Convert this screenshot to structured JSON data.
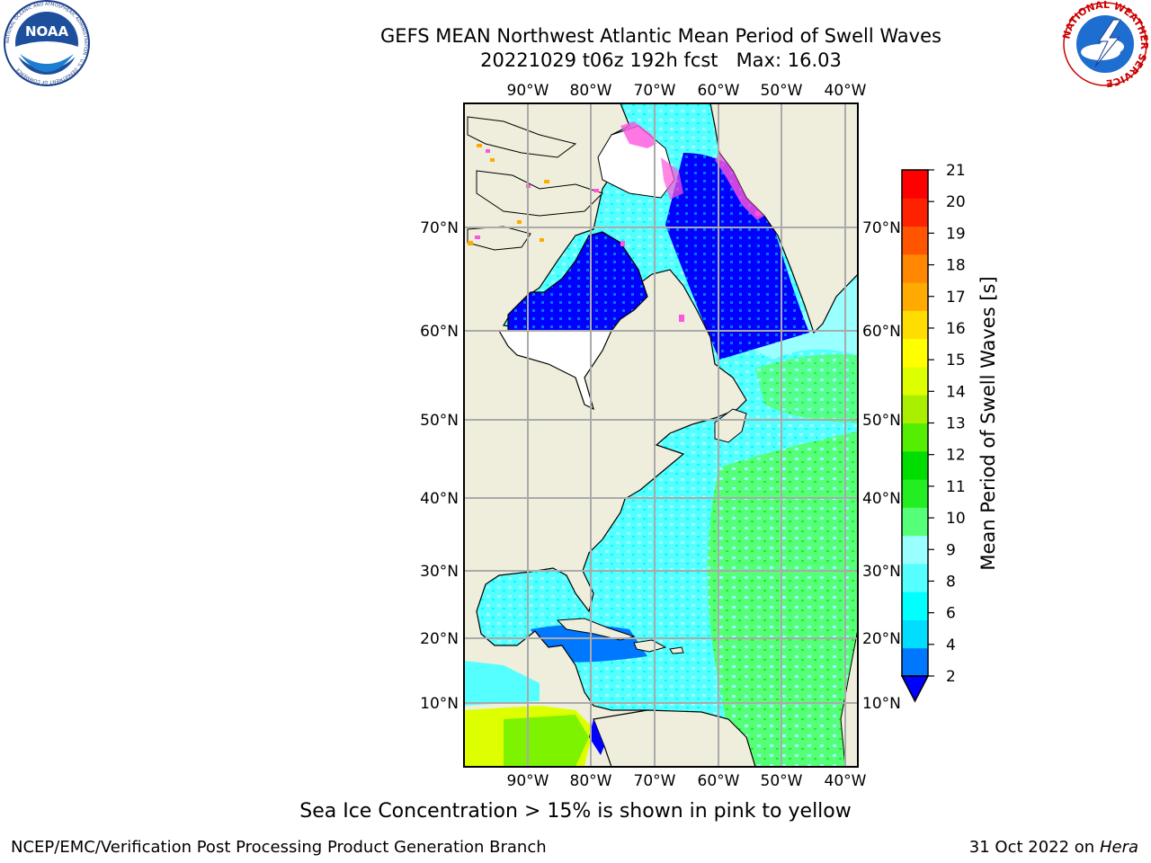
{
  "title": {
    "line1": "GEFS MEAN Northwest Atlantic Mean Period of Swell Waves",
    "line2": "20221029 t06z 192h fcst   Max: 16.03"
  },
  "logos": {
    "left": "NOAA",
    "left_ring": "NATIONAL OCEANIC AND ATMOSPHERIC ADMINISTRATION · U.S. DEPARTMENT OF COMMERCE",
    "right_ring": "NATIONAL WEATHER SERVICE"
  },
  "map": {
    "lon_labels": [
      "90°W",
      "80°W",
      "70°W",
      "60°W",
      "50°W",
      "40°W"
    ],
    "lat_labels": [
      "70°N",
      "60°N",
      "50°N",
      "40°N",
      "30°N",
      "20°N",
      "10°N"
    ],
    "colors": {
      "land": "#efeedc",
      "ocean_cyan": "#00ffff",
      "ocean_light": "#99ffff",
      "ocean_green": "#55ff77",
      "deep_blue": "#0000ff",
      "mid_blue": "#0077ff",
      "grid": "#aaaaaa"
    }
  },
  "colorbar": {
    "label": "Mean Period of Swell Waves [s]",
    "ticks": [
      "2",
      "4",
      "6",
      "8",
      "9",
      "10",
      "11",
      "12",
      "13",
      "14",
      "15",
      "16",
      "17",
      "18",
      "19",
      "20",
      "21"
    ],
    "colors": [
      "#0077ff",
      "#00ddff",
      "#00ffff",
      "#55ffff",
      "#99ffff",
      "#55ff77",
      "#22ee22",
      "#00dd00",
      "#55ee00",
      "#aaee00",
      "#ddff00",
      "#ffff00",
      "#ffdd00",
      "#ffaa00",
      "#ff8800",
      "#ff5500",
      "#ff2200",
      "#ff0000"
    ],
    "extend_color": "#0000ff"
  },
  "caption": "Sea Ice Concentration > 15% is shown in pink to yellow",
  "footer": {
    "left": "NCEP/EMC/Verification Post Processing Product Generation Branch",
    "right_date": "31 Oct 2022 on ",
    "right_host": "Hera"
  }
}
